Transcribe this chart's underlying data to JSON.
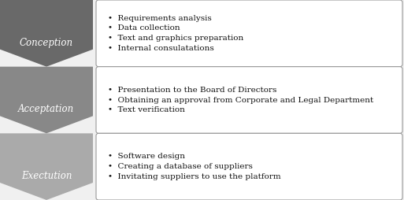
{
  "rows": [
    {
      "label": "Conception",
      "arrow_color": "#696969",
      "bullets": [
        "Requirements analysis",
        "Data collection",
        "Text and graphics preparation",
        "Internal consulatations"
      ]
    },
    {
      "label": "Acceptation",
      "arrow_color": "#888888",
      "bullets": [
        "Presentation to the Board of Directors",
        "Obtaining an approval from Corporate and Legal Department",
        "Text verification"
      ]
    },
    {
      "label": "Exectution",
      "arrow_color": "#aaaaaa",
      "bullets": [
        "Software design",
        "Creating a database of suppliers",
        "Invitating suppliers to use the platform"
      ]
    }
  ],
  "background_color": "#f0f0f0",
  "box_facecolor": "#ffffff",
  "box_edgecolor": "#999999",
  "bullet_char": "•",
  "label_fontsize": 8.5,
  "bullet_fontsize": 7.5,
  "fig_width": 5.13,
  "fig_height": 2.54,
  "dpi": 100
}
